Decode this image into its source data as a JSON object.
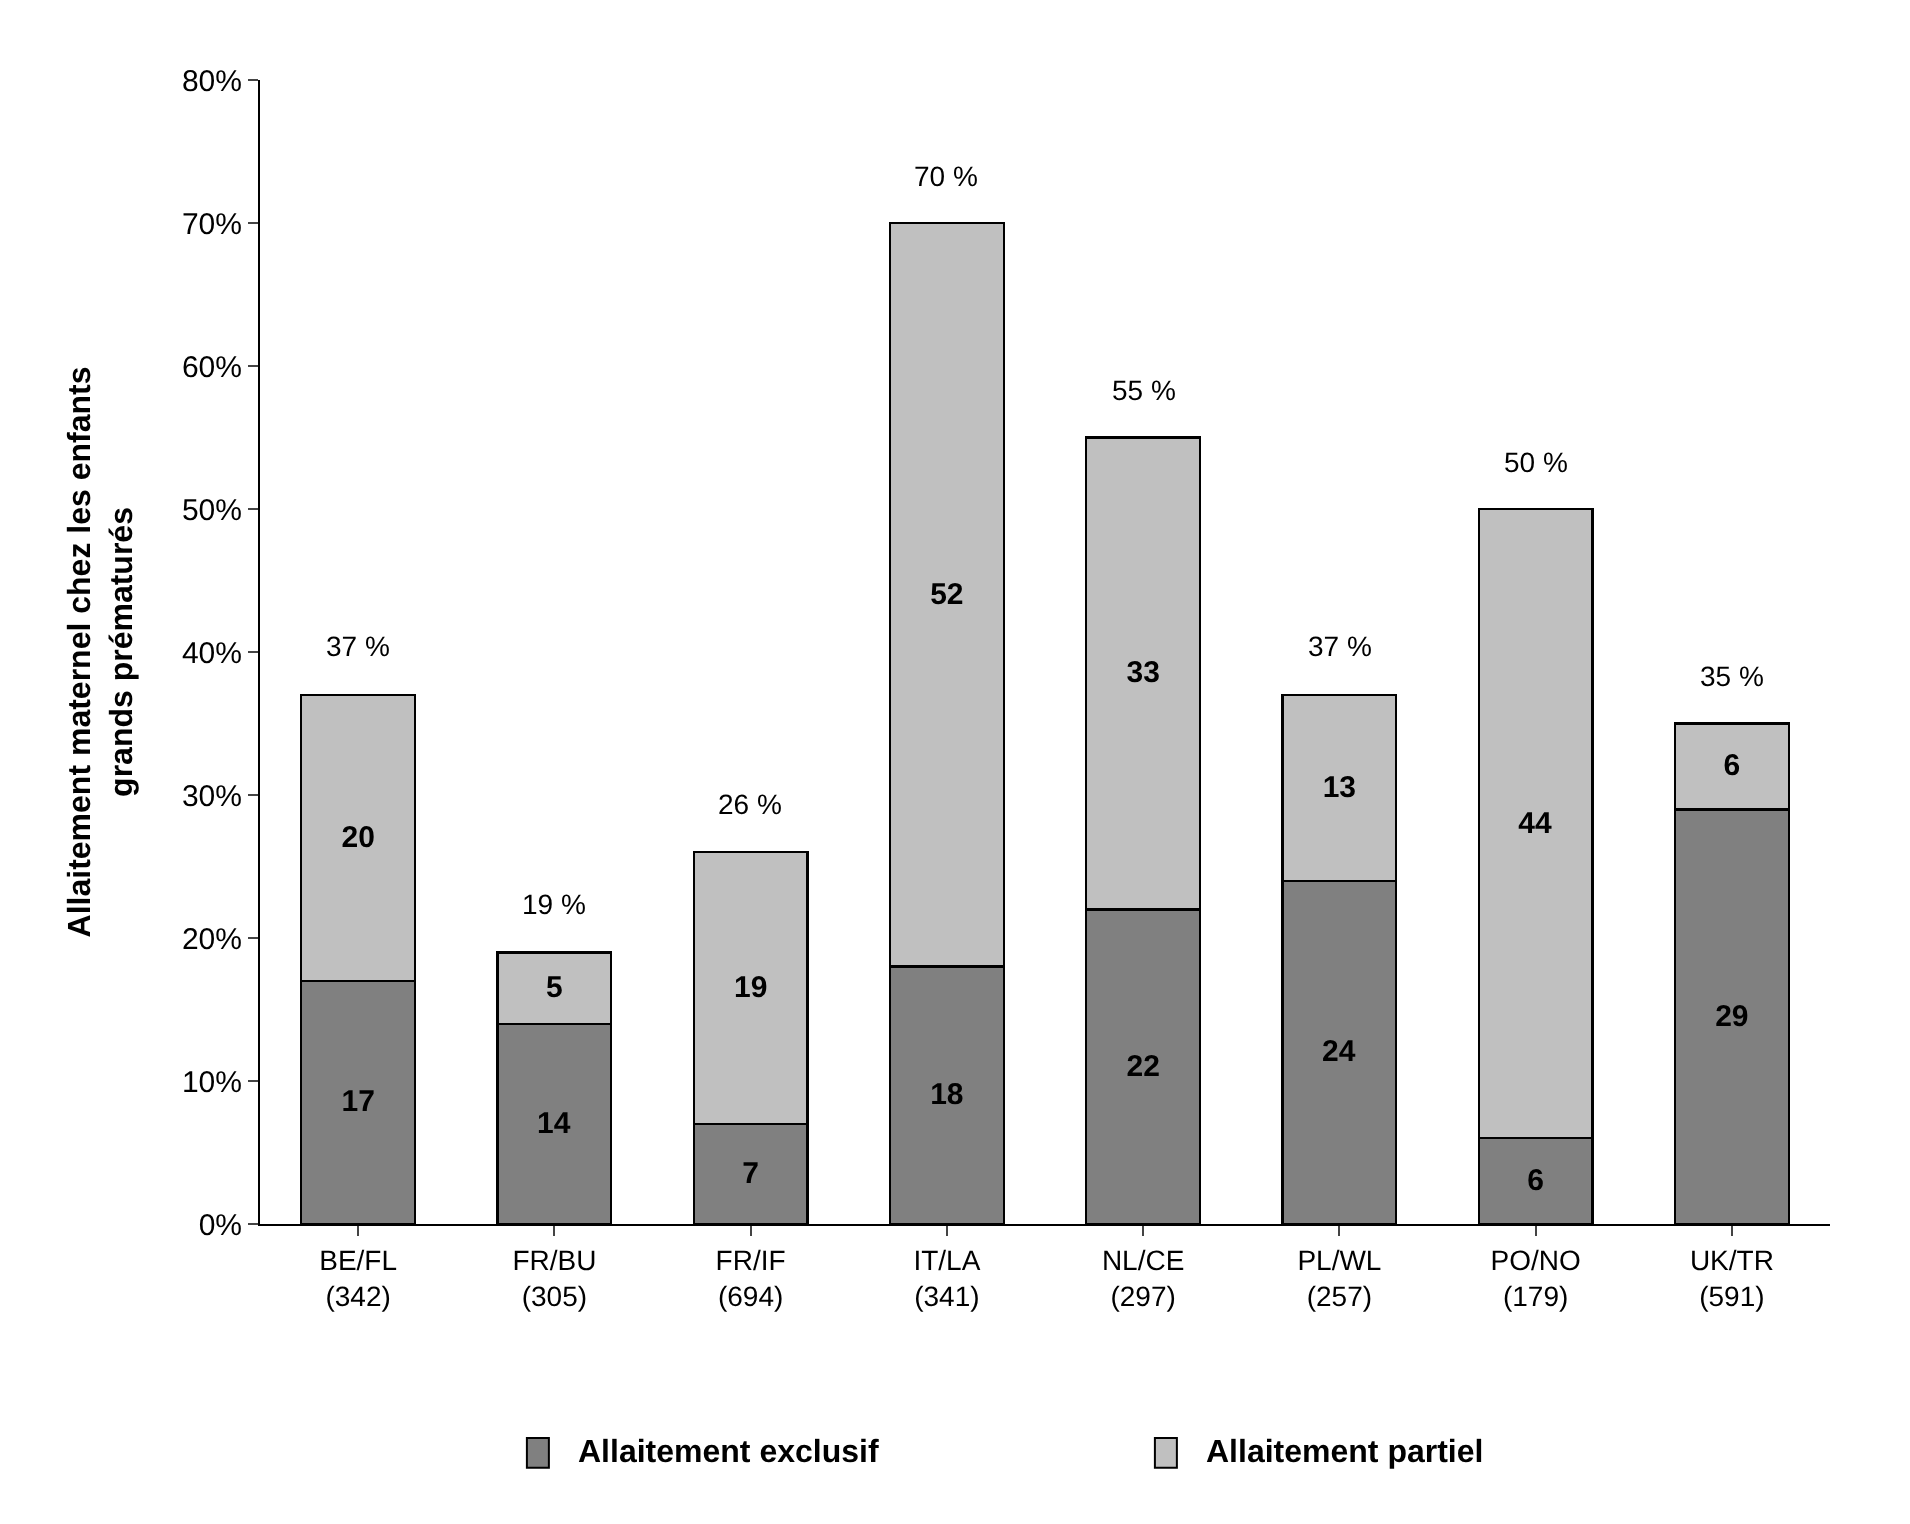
{
  "chart_data": {
    "type": "bar",
    "stacked": true,
    "ylabel": "Allaitement maternel chez les enfants\ngrands prématurés",
    "categories": [
      "BE/FL\n(342)",
      "FR/BU\n(305)",
      "FR/IF\n(694)",
      "IT/LA\n(341)",
      "NL/CE\n(297)",
      "PL/WL\n(257)",
      "PO/NO\n(179)",
      "UK/TR\n(591)"
    ],
    "series": [
      {
        "name": "Allaitement exclusif",
        "color": "#808080",
        "values": [
          17,
          14,
          7,
          18,
          22,
          24,
          6,
          29
        ]
      },
      {
        "name": "Allaitement partiel",
        "color": "#c0c0c0",
        "values": [
          20,
          5,
          19,
          52,
          33,
          13,
          44,
          6
        ]
      }
    ],
    "data_labels": true,
    "totals": [
      "37 %",
      "19 %",
      "26 %",
      "70 %",
      "55 %",
      "37 %",
      "50 %",
      "35 %"
    ],
    "ylim": [
      0,
      80
    ],
    "yticks": [
      {
        "value": 0,
        "label": "0%"
      },
      {
        "value": 10,
        "label": "10%"
      },
      {
        "value": 20,
        "label": "20%"
      },
      {
        "value": 30,
        "label": "30%"
      },
      {
        "value": 40,
        "label": "40%"
      },
      {
        "value": 50,
        "label": "50%"
      },
      {
        "value": 60,
        "label": "60%"
      },
      {
        "value": 70,
        "label": "70%"
      },
      {
        "value": 80,
        "label": "80%"
      }
    ],
    "grid": false,
    "legend": "bottom"
  }
}
